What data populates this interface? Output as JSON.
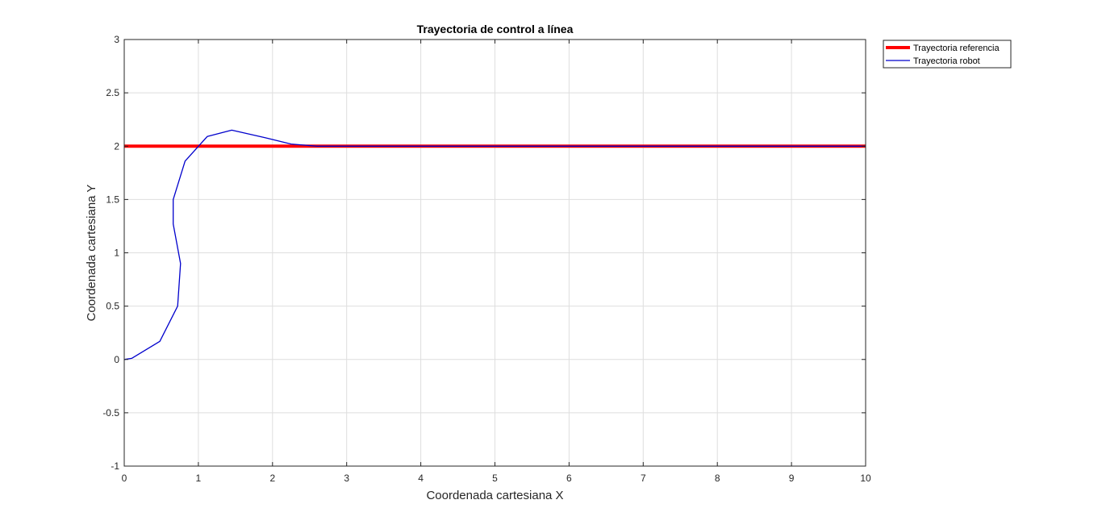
{
  "chart_data": {
    "type": "line",
    "title": "Trayectoria de control a línea",
    "xlabel": "Coordenada cartesiana X",
    "ylabel": "Coordenada cartesiana Y",
    "xlim": [
      0,
      10
    ],
    "ylim": [
      -1,
      3
    ],
    "xticks": [
      "0",
      "1",
      "2",
      "3",
      "4",
      "5",
      "6",
      "7",
      "8",
      "9",
      "10"
    ],
    "yticks": [
      "-1",
      "-0.5",
      "0",
      "0.5",
      "1",
      "1.5",
      "2",
      "2.5",
      "3"
    ],
    "grid": true,
    "legend_position": "top-right, outside plot",
    "series": [
      {
        "name": "Trayectoria referencia",
        "color": "#ff0000",
        "x": [
          0,
          10
        ],
        "y": [
          2,
          2
        ]
      },
      {
        "name": "Trayectoria robot",
        "color": "#0000cc",
        "x": [
          0,
          0.1,
          0.48,
          0.72,
          0.76,
          0.66,
          0.66,
          0.82,
          1.12,
          1.45,
          1.9,
          2.25,
          2.6,
          3.0,
          5.0,
          10.0
        ],
        "y": [
          0,
          0.01,
          0.17,
          0.5,
          0.9,
          1.27,
          1.5,
          1.86,
          2.09,
          2.15,
          2.08,
          2.02,
          2.0,
          2.0,
          2.0,
          2.0
        ]
      }
    ]
  }
}
